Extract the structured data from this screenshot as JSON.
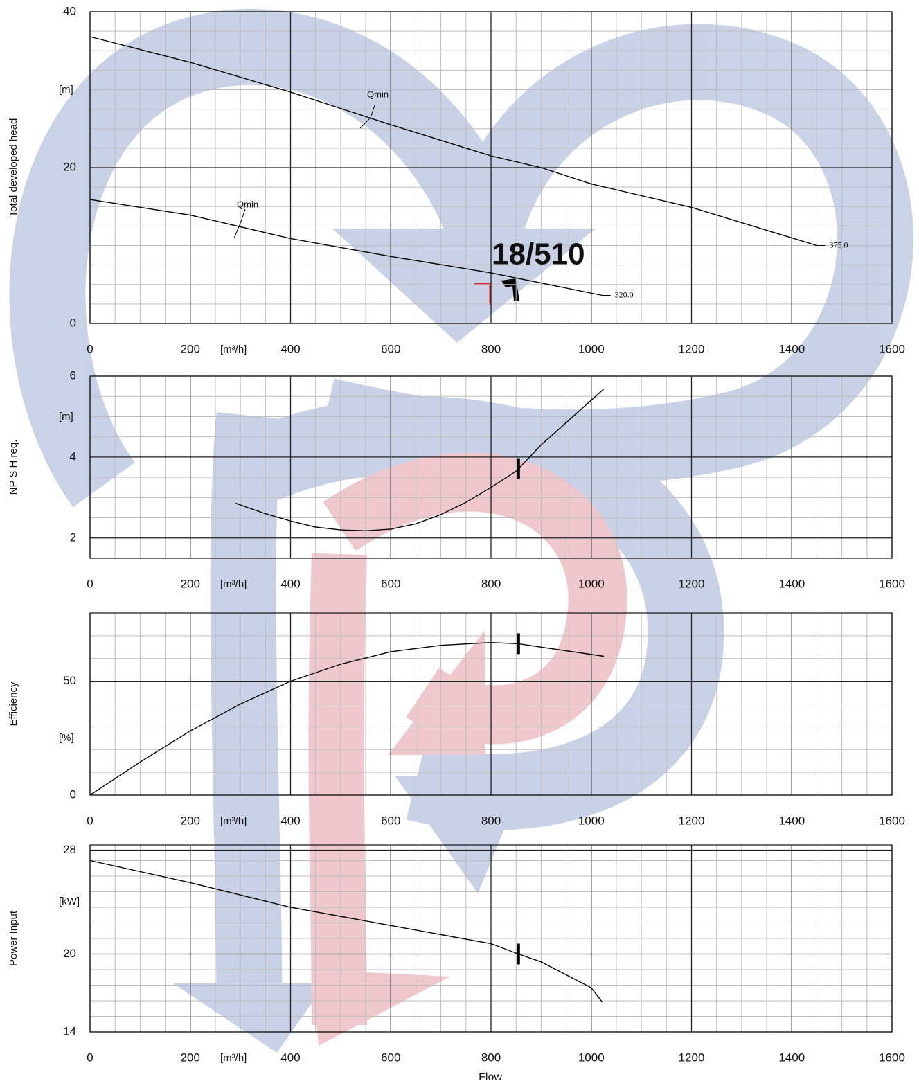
{
  "chart_data": [
    {
      "type": "line",
      "ylabel": "Total developed head",
      "y_unit": "[m]",
      "x_unit": "[m³/h]",
      "xlim": [
        0,
        1600
      ],
      "xticks": [
        0,
        200,
        400,
        600,
        800,
        1000,
        1200,
        1400,
        1600
      ],
      "ylim": [
        0,
        40
      ],
      "yticks": [
        0,
        20,
        40
      ],
      "grid": true,
      "series": [
        {
          "name": "375.0",
          "color": "#000000",
          "x": [
            0,
            200,
            400,
            600,
            800,
            900,
            1000,
            1200,
            1450
          ],
          "values": [
            36.8,
            33.5,
            29.7,
            25.5,
            21.5,
            20,
            17.9,
            14.9,
            10.0
          ]
        },
        {
          "name": "320.0",
          "color": "#000000",
          "x": [
            0,
            200,
            400,
            600,
            800,
            1022
          ],
          "values": [
            15.9,
            13.9,
            10.9,
            8.6,
            6.5,
            3.6
          ]
        }
      ],
      "annotations": [
        "Qmin",
        "Qmin",
        "18/510"
      ]
    },
    {
      "type": "line",
      "ylabel": "NP S H req.",
      "y_unit": "[m]",
      "x_unit": "[m³/h]",
      "xlim": [
        0,
        1600
      ],
      "xticks": [
        0,
        200,
        400,
        600,
        800,
        1000,
        1200,
        1400,
        1600
      ],
      "ylim": [
        1.5,
        6
      ],
      "yticks": [
        2,
        4,
        6
      ],
      "grid": true,
      "marker_x": 855,
      "series": [
        {
          "color": "#000000",
          "x": [
            290,
            350,
            400,
            450,
            500,
            550,
            600,
            650,
            700,
            750,
            800,
            850,
            900,
            950,
            1025
          ],
          "values": [
            2.86,
            2.6,
            2.42,
            2.27,
            2.2,
            2.18,
            2.22,
            2.35,
            2.58,
            2.88,
            3.25,
            3.65,
            4.3,
            4.85,
            5.68
          ]
        }
      ]
    },
    {
      "type": "line",
      "ylabel": "Efficiency",
      "y_unit": "[%]",
      "x_unit": "[m³/h]",
      "xlim": [
        0,
        1600
      ],
      "xticks": [
        0,
        200,
        400,
        600,
        800,
        1000,
        1200,
        1400,
        1600
      ],
      "ylim": [
        0,
        80
      ],
      "yticks": [
        0,
        50
      ],
      "grid": true,
      "marker_x": 855,
      "series": [
        {
          "color": "#000000",
          "x": [
            0,
            100,
            200,
            300,
            400,
            500,
            600,
            700,
            800,
            855,
            900,
            1025
          ],
          "values": [
            0,
            14.5,
            28.2,
            40,
            50,
            57.5,
            63,
            65.8,
            67,
            66.5,
            65,
            61
          ]
        }
      ]
    },
    {
      "type": "line",
      "ylabel": "Power Input",
      "y_unit": "[kW]",
      "x_unit": "[m³/h]",
      "xlabel": "Flow",
      "xlim": [
        0,
        1600
      ],
      "xticks": [
        0,
        200,
        400,
        600,
        800,
        1000,
        1200,
        1400,
        1600
      ],
      "ylim": [
        14,
        28.4
      ],
      "yticks": [
        14,
        20,
        28
      ],
      "grid": true,
      "marker_x": 855,
      "series": [
        {
          "color": "#000000",
          "x": [
            0,
            200,
            400,
            600,
            800,
            855,
            900,
            1000,
            1022
          ],
          "values": [
            27.2,
            25.5,
            23.6,
            22.2,
            20.8,
            20,
            19.4,
            17.4,
            16.3
          ]
        }
      ]
    }
  ]
}
